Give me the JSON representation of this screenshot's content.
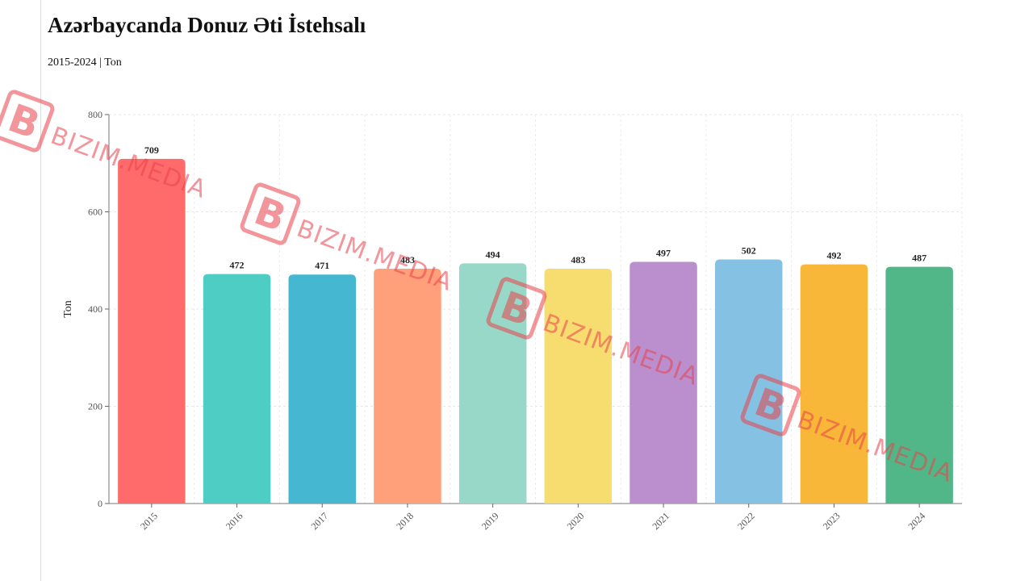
{
  "chart_data": {
    "type": "bar",
    "title": "Azərbaycanda Donuz Əti İstehsalı",
    "subtitle": "2015-2024 | Ton",
    "xlabel": "",
    "ylabel": "Ton",
    "categories": [
      "2015",
      "2016",
      "2017",
      "2018",
      "2019",
      "2020",
      "2021",
      "2022",
      "2023",
      "2024"
    ],
    "values": [
      709,
      472,
      471,
      483,
      494,
      483,
      497,
      502,
      492,
      487
    ],
    "colors": [
      "#ff6b6b",
      "#4ecdc4",
      "#45b7d1",
      "#ffa07a",
      "#98d8c8",
      "#f7dc6f",
      "#bb8fce",
      "#85c1e2",
      "#f8b739",
      "#52b788"
    ],
    "ylim": [
      0,
      800
    ],
    "yticks": [
      "0",
      "200",
      "400",
      "600",
      "800"
    ],
    "grid": true,
    "legend": "none",
    "data_labels": true
  },
  "watermark": {
    "text": "BIZIM.MEDIA",
    "color": "#e8424c"
  }
}
